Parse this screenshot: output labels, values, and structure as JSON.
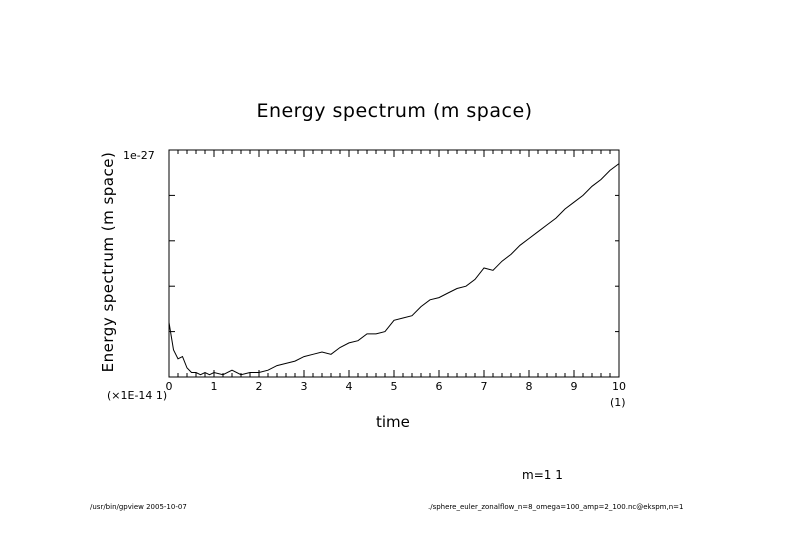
{
  "chart_data": {
    "type": "line",
    "title": "Energy spectrum (m space)",
    "xlabel": "time",
    "ylabel": "Energy spectrum (m space)",
    "x_multiplier_label": "(×1E-14 1)",
    "x_unit_label": "(1)",
    "y_top_tick_label": "1e-27",
    "xlim": [
      0,
      10
    ],
    "ylim": [
      0,
      1
    ],
    "x_ticks": [
      0,
      1,
      2,
      3,
      4,
      5,
      6,
      7,
      8,
      9,
      10
    ],
    "x_tick_labels": [
      "0",
      "1",
      "2",
      "3",
      "4",
      "5",
      "6",
      "7",
      "8",
      "9",
      "10"
    ],
    "grid": false,
    "series": [
      {
        "x": [
          0,
          0.1,
          0.2,
          0.3,
          0.4,
          0.5,
          0.6,
          0.7,
          0.8,
          0.9,
          1.0,
          1.2,
          1.4,
          1.6,
          1.8,
          2.0,
          2.2,
          2.4,
          2.6,
          2.8,
          3.0,
          3.2,
          3.4,
          3.6,
          3.8,
          4.0,
          4.2,
          4.4,
          4.6,
          4.8,
          5.0,
          5.2,
          5.4,
          5.6,
          5.8,
          6.0,
          6.2,
          6.4,
          6.6,
          6.8,
          7.0,
          7.2,
          7.4,
          7.6,
          7.8,
          8.0,
          8.2,
          8.4,
          8.6,
          8.8,
          9.0,
          9.2,
          9.4,
          9.6,
          9.8,
          10.0
        ],
        "y": [
          0.24,
          0.12,
          0.08,
          0.09,
          0.04,
          0.02,
          0.02,
          0.01,
          0.02,
          0.01,
          0.02,
          0.01,
          0.03,
          0.01,
          0.02,
          0.02,
          0.03,
          0.05,
          0.06,
          0.07,
          0.09,
          0.1,
          0.11,
          0.1,
          0.13,
          0.15,
          0.16,
          0.19,
          0.19,
          0.2,
          0.25,
          0.26,
          0.27,
          0.31,
          0.34,
          0.35,
          0.37,
          0.39,
          0.4,
          0.43,
          0.48,
          0.47,
          0.51,
          0.54,
          0.58,
          0.61,
          0.64,
          0.67,
          0.7,
          0.74,
          0.77,
          0.8,
          0.84,
          0.87,
          0.91,
          0.94
        ]
      }
    ],
    "colors": {
      "line": "#000000",
      "axes": "#000000",
      "background": "#ffffff"
    }
  },
  "annotations": {
    "m_label": "m=1 1",
    "footer_left": "/usr/bin/gpview  2005-10-07",
    "footer_right": "./sphere_euler_zonalflow_n=8_omega=100_amp=2_100.nc@ekspm,n=1"
  }
}
